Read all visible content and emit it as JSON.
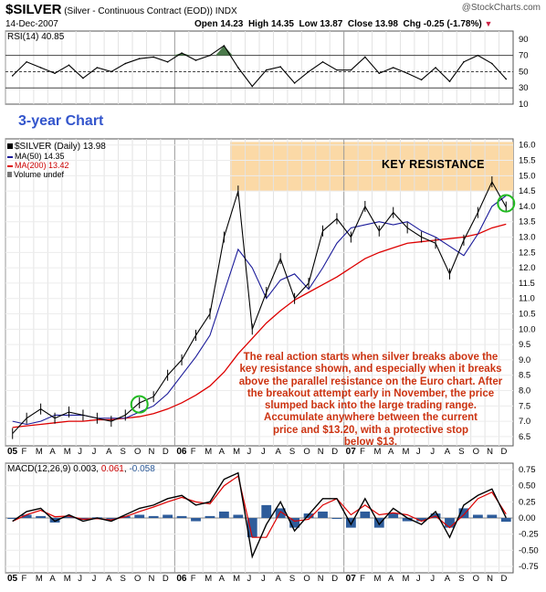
{
  "header": {
    "ticker": "$SILVER",
    "description": "(Silver - Continuous Contract (EOD))",
    "exchange": "INDX",
    "watermark": "@StockCharts.com",
    "date": "14-Dec-2007",
    "open_label": "Open",
    "open": "14.23",
    "high_label": "High",
    "high": "14.35",
    "low_label": "Low",
    "low": "13.87",
    "close_label": "Close",
    "close": "13.98",
    "chg_label": "Chg",
    "chg": "-0.25 (-1.78%)",
    "chg_marker": "▼"
  },
  "annotations": {
    "three_year": "3-year Chart",
    "key_resistance": "KEY RESISTANCE",
    "note_lines": [
      "The real action starts when silver breaks above the",
      "key resistance shown, and especially when it breaks",
      "above the parallel resistance on the Euro chart. After",
      "the breakout attempt early in November, the price",
      "slumped back into the large trading range.",
      "Accumulate anywhere between the current",
      "price and $13.20, with a protective stop",
      "below $13."
    ]
  },
  "colors": {
    "price": "#000000",
    "ma50": "#1a1a99",
    "ma200": "#dd0000",
    "resistance_band": "#fbd9a6",
    "note_text": "#cc3311",
    "macd_hist": "#2e5c9a",
    "rsi_fill": "#4a7a4a",
    "circle": "#22bb22"
  },
  "chart_data": [
    {
      "type": "line",
      "panel": "rsi",
      "title": "RSI(14) 40.85",
      "y_ticks": [
        10,
        30,
        50,
        70,
        90
      ],
      "ylim": [
        10,
        100
      ],
      "reference_lines": [
        30,
        50,
        70
      ],
      "overbought_fill_above": 70,
      "series": [
        {
          "name": "RSI(14)",
          "x": [
            "2005-01",
            "2005-02",
            "2005-03",
            "2005-04",
            "2005-05",
            "2005-06",
            "2005-07",
            "2005-08",
            "2005-09",
            "2005-10",
            "2005-11",
            "2005-12",
            "2006-01",
            "2006-02",
            "2006-03",
            "2006-04",
            "2006-05",
            "2006-06",
            "2006-07",
            "2006-08",
            "2006-09",
            "2006-10",
            "2006-11",
            "2006-12",
            "2007-01",
            "2007-02",
            "2007-03",
            "2007-04",
            "2007-05",
            "2007-06",
            "2007-07",
            "2007-08",
            "2007-09",
            "2007-10",
            "2007-11",
            "2007-12"
          ],
          "values": [
            45,
            62,
            55,
            48,
            58,
            42,
            55,
            50,
            60,
            66,
            68,
            62,
            73,
            64,
            70,
            82,
            55,
            32,
            52,
            56,
            36,
            50,
            62,
            52,
            52,
            68,
            48,
            55,
            48,
            40,
            55,
            38,
            62,
            70,
            60,
            41
          ]
        }
      ]
    },
    {
      "type": "line",
      "panel": "price",
      "title": "$SILVER (Daily) 13.98",
      "legend": [
        "$SILVER (Daily) 13.98",
        "MA(50) 14.35",
        "MA(200) 13.42",
        "Volume undef"
      ],
      "y_ticks": [
        6.5,
        7.0,
        7.5,
        8.0,
        8.5,
        9.0,
        9.5,
        10.0,
        10.5,
        11.0,
        11.5,
        12.0,
        12.5,
        13.0,
        13.5,
        14.0,
        14.5,
        15.0,
        15.5,
        16.0
      ],
      "ylim": [
        6.2,
        16.2
      ],
      "resistance_band": [
        14.5,
        16.1
      ],
      "circles": [
        {
          "x": "2005-10",
          "y": 7.55
        },
        {
          "x": "2007-12",
          "y": 14.1
        }
      ],
      "series": [
        {
          "name": "$SILVER (Daily)",
          "x": [
            "2005-01",
            "2005-02",
            "2005-03",
            "2005-04",
            "2005-05",
            "2005-06",
            "2005-07",
            "2005-08",
            "2005-09",
            "2005-10",
            "2005-11",
            "2005-12",
            "2006-01",
            "2006-02",
            "2006-03",
            "2006-04",
            "2006-05",
            "2006-06",
            "2006-07",
            "2006-08",
            "2006-09",
            "2006-10",
            "2006-11",
            "2006-12",
            "2007-01",
            "2007-02",
            "2007-03",
            "2007-04",
            "2007-05",
            "2007-06",
            "2007-07",
            "2007-08",
            "2007-09",
            "2007-10",
            "2007-11",
            "2007-12"
          ],
          "values": [
            6.6,
            7.1,
            7.4,
            7.1,
            7.3,
            7.2,
            7.1,
            7.0,
            7.2,
            7.6,
            7.8,
            8.5,
            9.0,
            9.8,
            10.5,
            13.0,
            14.5,
            10.0,
            11.2,
            12.3,
            11.0,
            11.5,
            13.2,
            13.6,
            13.0,
            14.0,
            13.2,
            13.8,
            13.3,
            13.0,
            12.8,
            11.8,
            12.9,
            13.8,
            14.8,
            13.98
          ]
        },
        {
          "name": "MA(50)",
          "x": [
            "2005-01",
            "2005-02",
            "2005-03",
            "2005-04",
            "2005-05",
            "2005-06",
            "2005-07",
            "2005-08",
            "2005-09",
            "2005-10",
            "2005-11",
            "2005-12",
            "2006-01",
            "2006-02",
            "2006-03",
            "2006-04",
            "2006-05",
            "2006-06",
            "2006-07",
            "2006-08",
            "2006-09",
            "2006-10",
            "2006-11",
            "2006-12",
            "2007-01",
            "2007-02",
            "2007-03",
            "2007-04",
            "2007-05",
            "2007-06",
            "2007-07",
            "2007-08",
            "2007-09",
            "2007-10",
            "2007-11",
            "2007-12"
          ],
          "values": [
            7.0,
            6.9,
            7.0,
            7.2,
            7.2,
            7.2,
            7.1,
            7.1,
            7.1,
            7.3,
            7.5,
            7.9,
            8.5,
            9.1,
            9.8,
            11.2,
            12.6,
            12.0,
            11.0,
            11.6,
            11.8,
            11.3,
            12.0,
            12.8,
            13.3,
            13.4,
            13.5,
            13.4,
            13.5,
            13.2,
            13.0,
            12.7,
            12.4,
            13.1,
            14.0,
            14.35
          ]
        },
        {
          "name": "MA(200)",
          "x": [
            "2005-01",
            "2005-02",
            "2005-03",
            "2005-04",
            "2005-05",
            "2005-06",
            "2005-07",
            "2005-08",
            "2005-09",
            "2005-10",
            "2005-11",
            "2005-12",
            "2006-01",
            "2006-02",
            "2006-03",
            "2006-04",
            "2006-05",
            "2006-06",
            "2006-07",
            "2006-08",
            "2006-09",
            "2006-10",
            "2006-11",
            "2006-12",
            "2007-01",
            "2007-02",
            "2007-03",
            "2007-04",
            "2007-05",
            "2007-06",
            "2007-07",
            "2007-08",
            "2007-09",
            "2007-10",
            "2007-11",
            "2007-12"
          ],
          "values": [
            6.8,
            6.85,
            6.9,
            6.95,
            7.0,
            7.0,
            7.05,
            7.05,
            7.1,
            7.15,
            7.25,
            7.4,
            7.6,
            7.85,
            8.15,
            8.6,
            9.2,
            9.7,
            10.2,
            10.6,
            10.95,
            11.2,
            11.45,
            11.7,
            12.0,
            12.3,
            12.5,
            12.65,
            12.8,
            12.85,
            12.9,
            12.95,
            13.0,
            13.1,
            13.3,
            13.42
          ]
        }
      ]
    },
    {
      "type": "line",
      "panel": "macd",
      "title": "MACD(12,26,9)",
      "title_values": [
        "0.003",
        "0.061",
        "-0.058"
      ],
      "y_ticks": [
        0.75,
        0.5,
        0.25,
        0.0,
        -0.25,
        -0.5,
        -0.75
      ],
      "ylim": [
        -0.85,
        0.85
      ],
      "series": [
        {
          "name": "MACD",
          "x": [
            "2005-01",
            "2005-02",
            "2005-03",
            "2005-04",
            "2005-05",
            "2005-06",
            "2005-07",
            "2005-08",
            "2005-09",
            "2005-10",
            "2005-11",
            "2005-12",
            "2006-01",
            "2006-02",
            "2006-03",
            "2006-04",
            "2006-05",
            "2006-06",
            "2006-07",
            "2006-08",
            "2006-09",
            "2006-10",
            "2006-11",
            "2006-12",
            "2007-01",
            "2007-02",
            "2007-03",
            "2007-04",
            "2007-05",
            "2007-06",
            "2007-07",
            "2007-08",
            "2007-09",
            "2007-10",
            "2007-11",
            "2007-12"
          ],
          "values": [
            -0.05,
            0.1,
            0.15,
            -0.05,
            0.05,
            -0.05,
            0.0,
            -0.05,
            0.05,
            0.15,
            0.2,
            0.3,
            0.35,
            0.2,
            0.25,
            0.6,
            0.7,
            -0.6,
            -0.1,
            0.25,
            -0.2,
            0.05,
            0.3,
            0.3,
            -0.1,
            0.3,
            -0.1,
            0.15,
            0.0,
            -0.1,
            0.1,
            -0.3,
            0.2,
            0.35,
            0.45,
            0.003
          ]
        },
        {
          "name": "Signal",
          "x": [
            "2005-01",
            "2005-02",
            "2005-03",
            "2005-04",
            "2005-05",
            "2005-06",
            "2005-07",
            "2005-08",
            "2005-09",
            "2005-10",
            "2005-11",
            "2005-12",
            "2006-01",
            "2006-02",
            "2006-03",
            "2006-04",
            "2006-05",
            "2006-06",
            "2006-07",
            "2006-08",
            "2006-09",
            "2006-10",
            "2006-11",
            "2006-12",
            "2007-01",
            "2007-02",
            "2007-03",
            "2007-04",
            "2007-05",
            "2007-06",
            "2007-07",
            "2007-08",
            "2007-09",
            "2007-10",
            "2007-11",
            "2007-12"
          ],
          "values": [
            -0.05,
            0.05,
            0.12,
            0.02,
            0.03,
            -0.02,
            -0.01,
            -0.03,
            0.02,
            0.1,
            0.17,
            0.25,
            0.32,
            0.25,
            0.22,
            0.5,
            0.65,
            -0.3,
            -0.3,
            0.1,
            -0.05,
            -0.02,
            0.2,
            0.3,
            0.05,
            0.2,
            0.05,
            0.08,
            0.05,
            -0.05,
            0.03,
            -0.15,
            0.05,
            0.3,
            0.4,
            0.061
          ]
        }
      ]
    }
  ],
  "x_axis": {
    "month_labels": [
      "05",
      "F",
      "M",
      "A",
      "M",
      "J",
      "J",
      "A",
      "S",
      "O",
      "N",
      "D",
      "06",
      "F",
      "M",
      "A",
      "M",
      "J",
      "J",
      "A",
      "S",
      "O",
      "N",
      "D",
      "07",
      "F",
      "M",
      "A",
      "M",
      "J",
      "J",
      "A",
      "S",
      "O",
      "N",
      "D"
    ],
    "year_marks": [
      "05",
      "06",
      "07"
    ]
  }
}
